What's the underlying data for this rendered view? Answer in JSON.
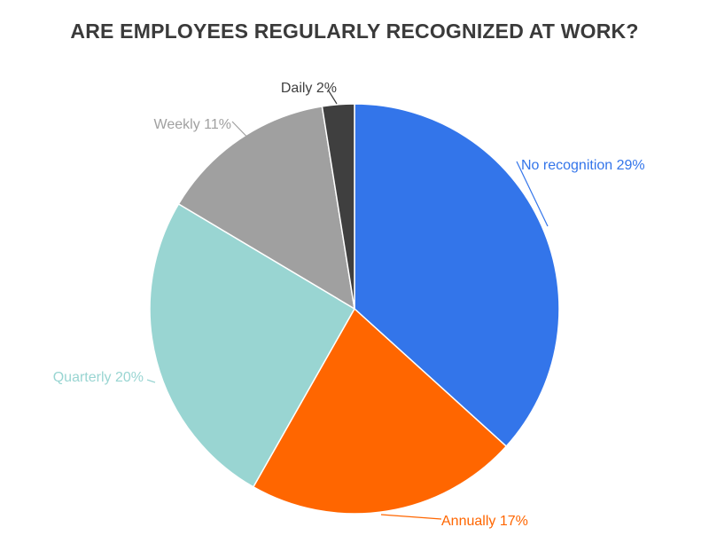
{
  "chart_data": {
    "type": "pie",
    "title": "ARE EMPLOYEES REGULARLY RECOGNIZED AT WORK?",
    "slices": [
      {
        "label": "No recognition 29%",
        "value": 29,
        "color": "#3375EA"
      },
      {
        "label": "Annually 17%",
        "value": 17,
        "color": "#FF6600"
      },
      {
        "label": "Quarterly 20%",
        "value": 20,
        "color": "#99D5D2"
      },
      {
        "label": "Weekly 11%",
        "value": 11,
        "color": "#A0A0A0"
      },
      {
        "label": "Daily 2%",
        "value": 2,
        "color": "#3F3F3F"
      }
    ],
    "label_colors": [
      "#3375EA",
      "#FF6600",
      "#99D5D2",
      "#A0A0A0",
      "#3F3F3F"
    ]
  }
}
